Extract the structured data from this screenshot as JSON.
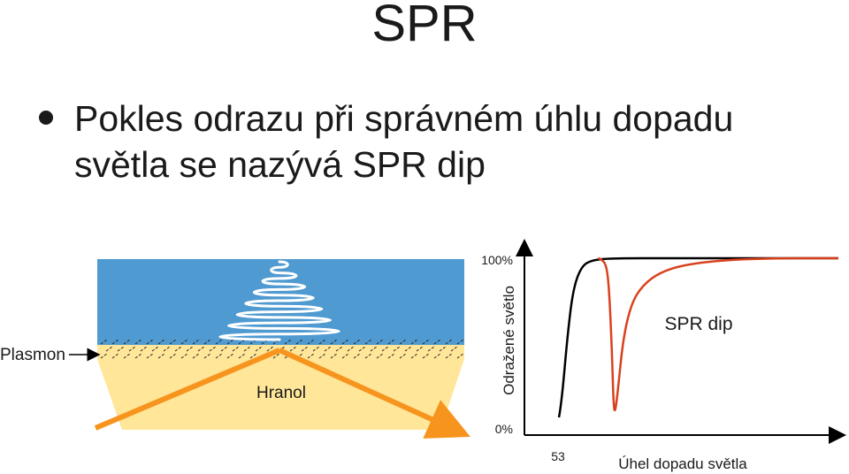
{
  "slide": {
    "title": "SPR",
    "bullets": [
      "Pokles odrazu při správném úhlu dopadu světla se nazývá SPR dip"
    ]
  },
  "diagram": {
    "plasmon_label": "Plasmon",
    "prism_label": "Hranol",
    "colors": {
      "liquid": "#4f9ad0",
      "prism": "#ffe699",
      "light_beam": "#f7941d",
      "wave": "#ffffff",
      "dashes": "#222222"
    }
  },
  "chart_data": {
    "type": "line",
    "title": "",
    "xlabel": "Úhel dopadu světla",
    "ylabel": "Odražené světlo",
    "y_ticks": [
      "0%",
      "100%"
    ],
    "x_ticks": [
      "53"
    ],
    "annotation": "SPR dip",
    "series": [
      {
        "color": "#000000",
        "x": [
          0,
          0.5,
          1.5,
          3,
          5,
          8,
          12,
          20,
          40,
          60,
          80,
          100
        ],
        "y": [
          0,
          5,
          20,
          50,
          80,
          95,
          99,
          100,
          100,
          100,
          100,
          100
        ]
      },
      {
        "color": "#d9411e",
        "x": [
          14,
          15,
          17,
          18,
          19,
          19.5,
          20,
          21,
          23,
          26,
          30,
          36,
          45,
          60,
          80,
          100
        ],
        "y": [
          100,
          99.5,
          96,
          80,
          40,
          10,
          2,
          15,
          50,
          72,
          83,
          91,
          96,
          99,
          100,
          100
        ]
      }
    ]
  }
}
